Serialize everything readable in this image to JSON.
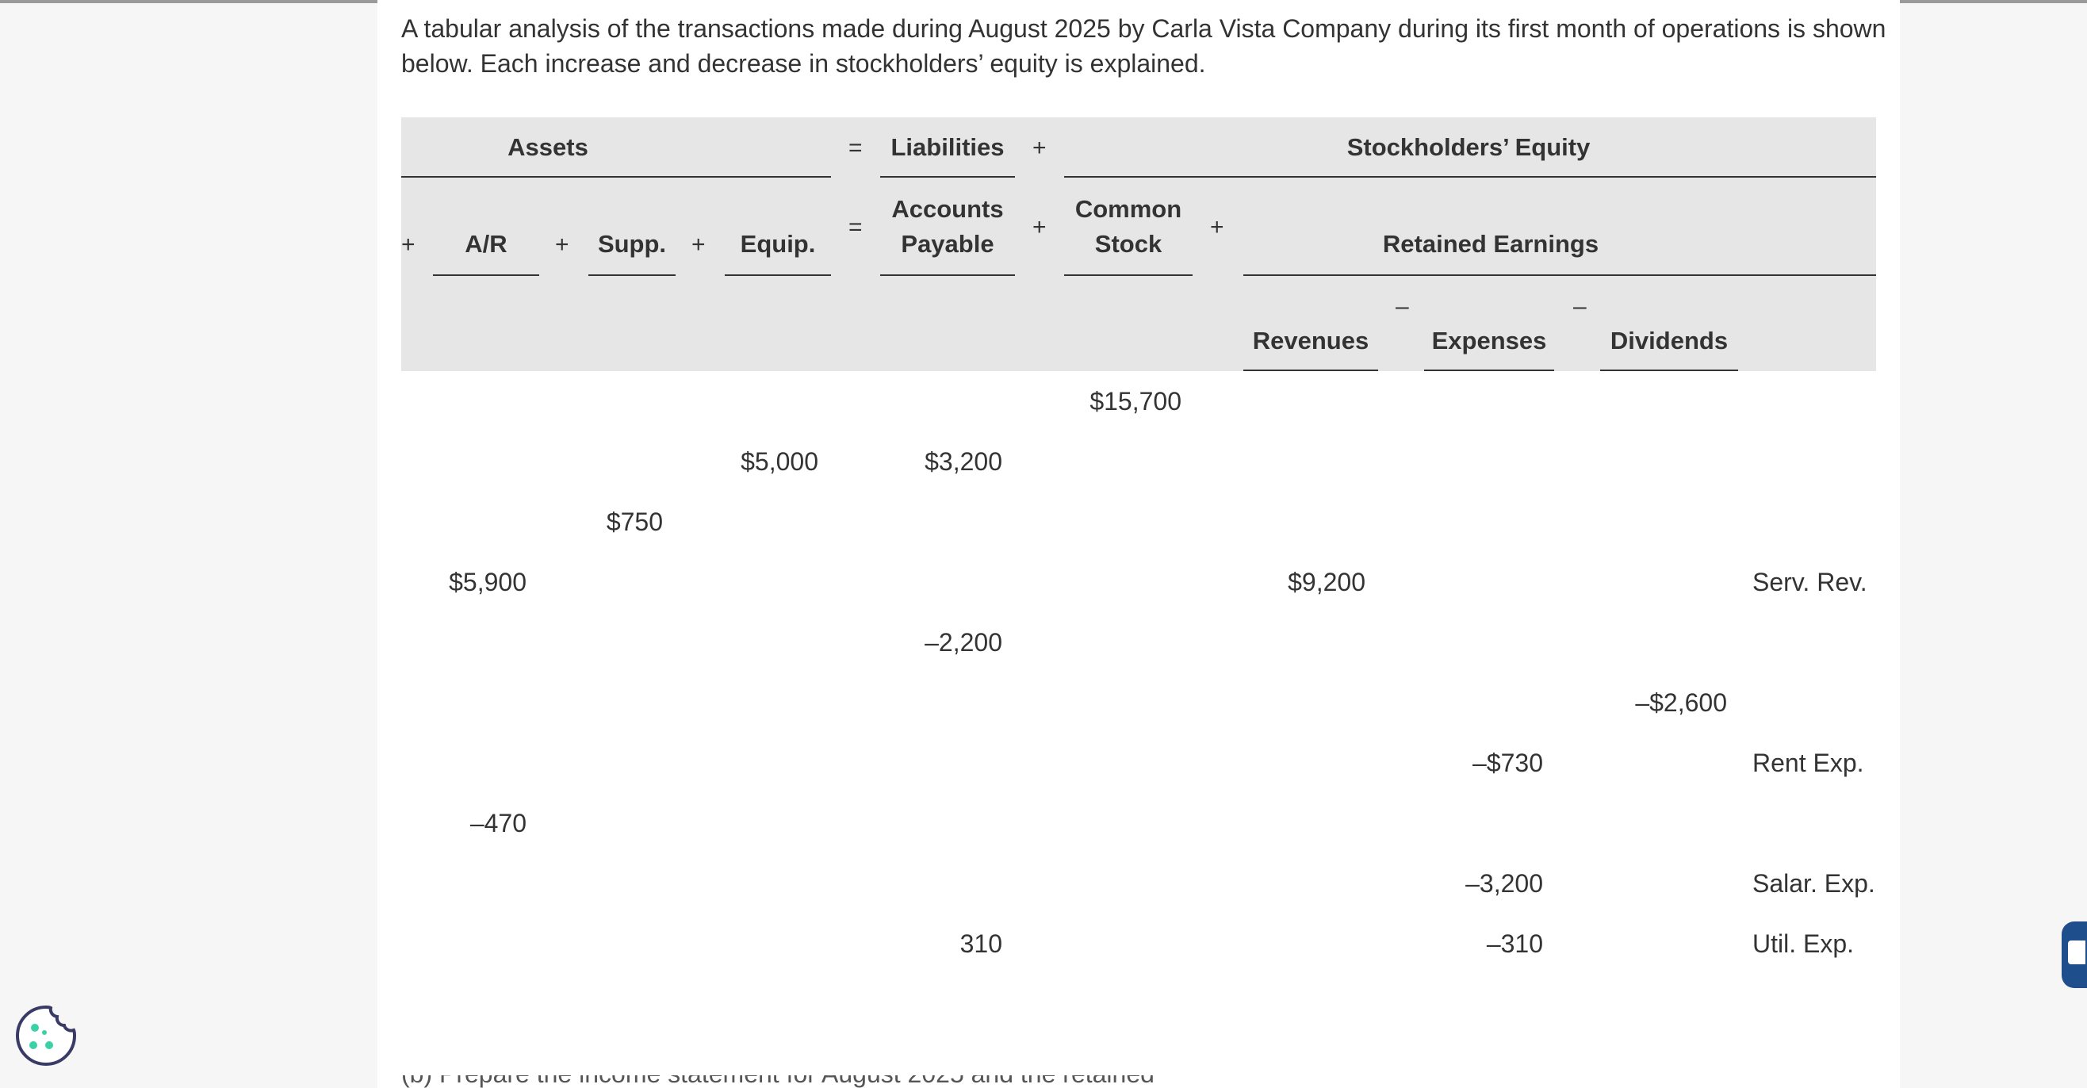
{
  "intro_text": "A tabular analysis of the transactions made during August 2025 by Carla Vista Company during its first month of operations is shown below. Each increase and decrease in stockholders’ equity is explained.",
  "header": {
    "assets": "Assets",
    "equals": "=",
    "liabilities": "Liabilities",
    "plus": "+",
    "stockholders_equity": "Stockholders’ Equity",
    "ar": "A/R",
    "supp": "Supp.",
    "equip": "Equip.",
    "accounts_payable": "Accounts Payable",
    "common_stock": "Common Stock",
    "retained_earnings": "Retained Earnings",
    "revenues": "Revenues",
    "expenses": "Expenses",
    "dividends": "Dividends",
    "minus": "–"
  },
  "rows": [
    {
      "common_stock": "$15,700"
    },
    {
      "equip": "$5,000",
      "accounts_payable": "$3,200"
    },
    {
      "supp": "$750"
    },
    {
      "ar": "$5,900",
      "revenues": "$9,200",
      "note": "Serv. Rev."
    },
    {
      "accounts_payable": "–2,200"
    },
    {
      "dividends": "–$2,600"
    },
    {
      "expenses": "–$730",
      "note": "Rent Exp."
    },
    {
      "ar": "–470"
    },
    {
      "expenses": "–3,200",
      "note": "Salar. Exp."
    },
    {
      "accounts_payable": "310",
      "expenses": "–310",
      "note": "Util. Exp."
    }
  ],
  "footer_partial_text": "(b) Prepare the income statement for August 2025 and the retained earnings statement for the month."
}
